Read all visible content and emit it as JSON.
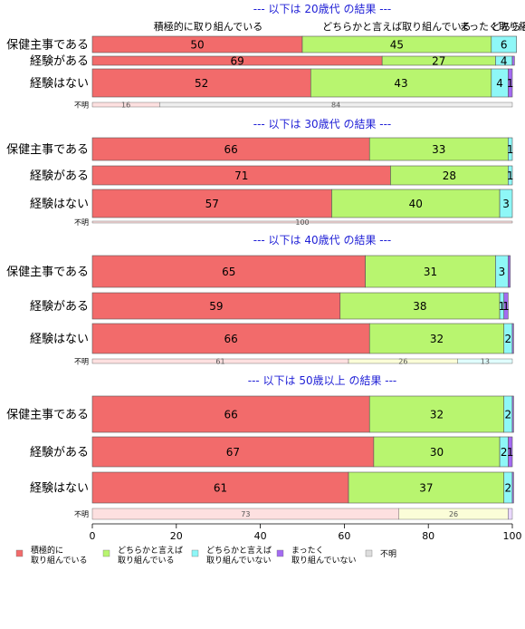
{
  "chart_data": {
    "type": "bar",
    "orientation": "horizontal",
    "stacked": true,
    "xlim": [
      0,
      100
    ],
    "xticks": [
      0,
      20,
      40,
      60,
      80,
      100
    ],
    "legend_position": "bottom",
    "categories": [
      {
        "name": "積極的に\n取り組んでいる",
        "color": "#f26b6b"
      },
      {
        "name": "どちらかと言えば\n取り組んでいる",
        "color": "#b8f56f"
      },
      {
        "name": "どちらかと言えば\n取り組んでいない",
        "color": "#8ef7f7"
      },
      {
        "name": "まったく\n取り組んでいない",
        "color": "#a46bf2"
      },
      {
        "name": "不明",
        "color": "#dddddd"
      }
    ],
    "column_headers": [
      "積極的に取り組んでいる",
      "どちらかと言えば取り組んでいる",
      "どちらかと言えば取り組んでいない",
      "まったく取り組んでいない",
      "不明"
    ],
    "column_headers_visible": [
      "積極的に取り組んでいる",
      "どちらかと言えば取り組んでいる",
      "どちら",
      "まったく取り組んでいない",
      "不明"
    ],
    "panels": [
      {
        "title": "--- 以下は 20歳代 の結果 ---",
        "rows": [
          {
            "label": "保健主事である",
            "values": [
              50,
              45,
              6,
              0,
              0
            ],
            "labels": [
              "50",
              "45",
              "6",
              "",
              ""
            ]
          },
          {
            "label": "経験がある",
            "values": [
              69,
              27,
              4,
              0.5,
              0
            ],
            "labels": [
              "69",
              "27",
              "4",
              "",
              ""
            ]
          },
          {
            "label": "経験はない",
            "values": [
              52,
              43,
              4,
              1,
              0
            ],
            "labels": [
              "52",
              "43",
              "4",
              "1",
              ""
            ]
          }
        ],
        "unknown": {
          "label": "不明",
          "values": [
            16,
            0,
            0,
            0,
            84
          ],
          "labels": [
            "16",
            "",
            "",
            "",
            "84"
          ]
        }
      },
      {
        "title": "--- 以下は 30歳代 の結果 ---",
        "rows": [
          {
            "label": "保健主事である",
            "values": [
              66,
              33,
              1,
              0,
              0
            ],
            "labels": [
              "66",
              "33",
              "1",
              "",
              ""
            ]
          },
          {
            "label": "経験がある",
            "values": [
              71,
              28,
              1,
              0,
              0
            ],
            "labels": [
              "71",
              "28",
              "1",
              "",
              ""
            ]
          },
          {
            "label": "経験はない",
            "values": [
              57,
              40,
              3,
              0,
              0
            ],
            "labels": [
              "57",
              "40",
              "3",
              "",
              ""
            ]
          }
        ],
        "unknown": {
          "label": "不明",
          "values": [
            100,
            0,
            0,
            0,
            0
          ],
          "labels": [
            "100",
            "",
            "",
            "",
            ""
          ]
        }
      },
      {
        "title": "--- 以下は 40歳代 の結果 ---",
        "rows": [
          {
            "label": "保健主事である",
            "values": [
              65,
              31,
              3,
              0.5,
              0
            ],
            "labels": [
              "65",
              "31",
              "3",
              "",
              ""
            ]
          },
          {
            "label": "経験がある",
            "values": [
              59,
              38,
              1,
              1,
              0
            ],
            "labels": [
              "59",
              "38",
              "1",
              "1",
              ""
            ]
          },
          {
            "label": "経験はない",
            "values": [
              66,
              32,
              2,
              0.3,
              0
            ],
            "labels": [
              "66",
              "32",
              "2",
              "",
              ""
            ]
          }
        ],
        "unknown": {
          "label": "不明",
          "values": [
            61,
            26,
            13,
            0,
            0
          ],
          "labels": [
            "61",
            "26",
            "13",
            "",
            ""
          ]
        }
      },
      {
        "title": "--- 以下は 50歳以上 の結果 ---",
        "rows": [
          {
            "label": "保健主事である",
            "values": [
              66,
              32,
              2,
              0.3,
              0
            ],
            "labels": [
              "66",
              "32",
              "2",
              "",
              ""
            ]
          },
          {
            "label": "経験がある",
            "values": [
              67,
              30,
              2,
              1,
              0
            ],
            "labels": [
              "67",
              "30",
              "2",
              "1",
              ""
            ]
          },
          {
            "label": "経験はない",
            "values": [
              61,
              37,
              2,
              0.3,
              0
            ],
            "labels": [
              "61",
              "37",
              "2",
              "",
              ""
            ]
          }
        ],
        "unknown": {
          "label": "不明",
          "values": [
            73,
            26,
            0,
            1,
            0
          ],
          "labels": [
            "73",
            "26",
            "",
            "",
            ""
          ]
        }
      }
    ]
  }
}
